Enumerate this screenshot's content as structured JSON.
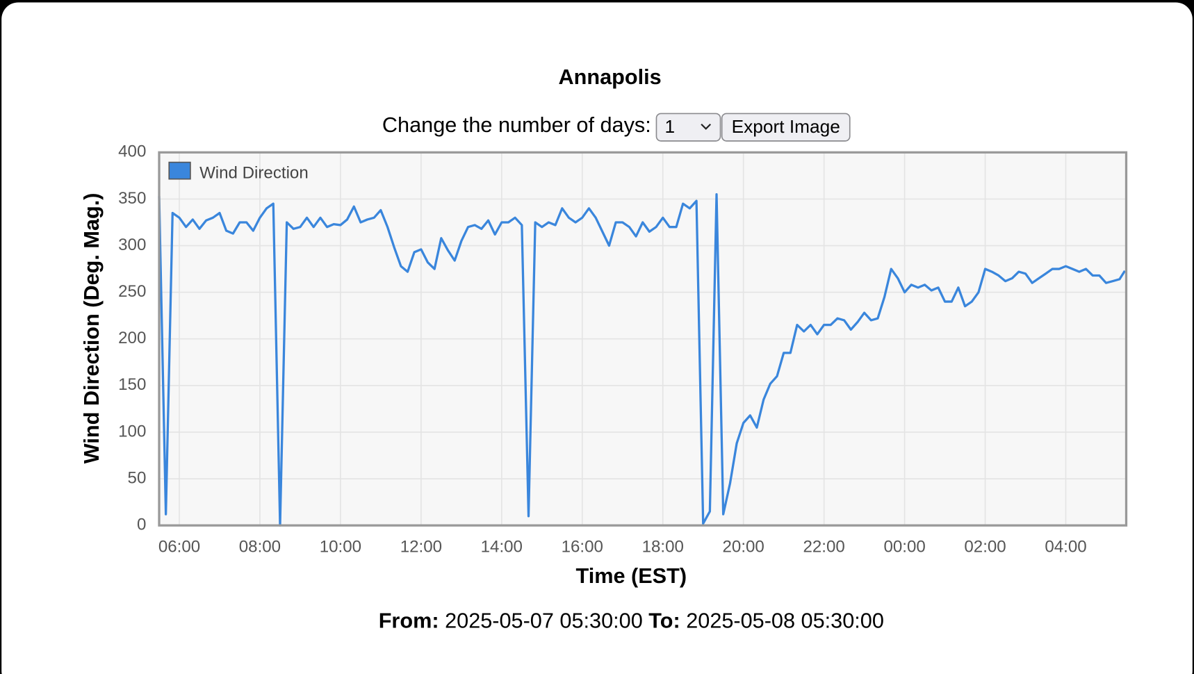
{
  "controls": {
    "label": "Change the number of days:",
    "days": "1",
    "export": "Export Image"
  },
  "footer": {
    "from_label": "From:",
    "from": "2025-05-07 05:30:00",
    "to_label": "To:",
    "to": "2025-05-08 05:30:00"
  },
  "chart_data": {
    "type": "line",
    "title": "Annapolis",
    "x_label": "Time (EST)",
    "y_label": "Wind Direction (Deg. Mag.)",
    "x": [
      "05:30",
      "05:40",
      "05:50",
      "06:00",
      "06:10",
      "06:20",
      "06:30",
      "06:40",
      "06:50",
      "07:00",
      "07:10",
      "07:20",
      "07:30",
      "07:40",
      "07:50",
      "08:00",
      "08:10",
      "08:20",
      "08:30",
      "08:40",
      "08:50",
      "09:00",
      "09:10",
      "09:20",
      "09:30",
      "09:40",
      "09:50",
      "10:00",
      "10:10",
      "10:20",
      "10:30",
      "10:40",
      "10:50",
      "11:00",
      "11:10",
      "11:20",
      "11:30",
      "11:40",
      "11:50",
      "12:00",
      "12:10",
      "12:20",
      "12:30",
      "12:40",
      "12:50",
      "13:00",
      "13:10",
      "13:20",
      "13:30",
      "13:40",
      "13:50",
      "14:00",
      "14:10",
      "14:20",
      "14:30",
      "14:40",
      "14:50",
      "15:00",
      "15:10",
      "15:20",
      "15:30",
      "15:40",
      "15:50",
      "16:00",
      "16:10",
      "16:20",
      "16:30",
      "16:40",
      "16:50",
      "17:00",
      "17:10",
      "17:20",
      "17:30",
      "17:40",
      "17:50",
      "18:00",
      "18:10",
      "18:20",
      "18:30",
      "18:40",
      "18:50",
      "19:00",
      "19:10",
      "19:20",
      "19:30",
      "19:40",
      "19:50",
      "20:00",
      "20:10",
      "20:20",
      "20:30",
      "20:40",
      "20:50",
      "21:00",
      "21:10",
      "21:20",
      "21:30",
      "21:40",
      "21:50",
      "22:00",
      "22:10",
      "22:20",
      "22:30",
      "22:40",
      "22:50",
      "23:00",
      "23:10",
      "23:20",
      "23:30",
      "23:40",
      "23:50",
      "00:00",
      "00:10",
      "00:20",
      "00:30",
      "00:40",
      "00:50",
      "01:00",
      "01:10",
      "01:20",
      "01:30",
      "01:40",
      "01:50",
      "02:00",
      "02:10",
      "02:20",
      "02:30",
      "02:40",
      "02:50",
      "03:00",
      "03:10",
      "03:20",
      "03:30",
      "03:40",
      "03:50",
      "04:00",
      "04:10",
      "04:20",
      "04:30",
      "04:40",
      "04:50",
      "05:00",
      "05:10",
      "05:20",
      "05:28"
    ],
    "series": [
      {
        "name": "Wind Direction",
        "color": "#3a86dc",
        "values": [
          353,
          12,
          335,
          330,
          320,
          328,
          318,
          327,
          330,
          335,
          316,
          313,
          325,
          325,
          316,
          330,
          340,
          345,
          0,
          325,
          318,
          320,
          330,
          320,
          330,
          320,
          323,
          322,
          328,
          342,
          325,
          328,
          330,
          338,
          320,
          298,
          278,
          272,
          293,
          296,
          282,
          275,
          308,
          295,
          284,
          305,
          320,
          322,
          318,
          327,
          312,
          325,
          325,
          330,
          322,
          10,
          325,
          320,
          325,
          322,
          340,
          330,
          325,
          330,
          340,
          330,
          315,
          300,
          325,
          325,
          320,
          310,
          325,
          315,
          320,
          330,
          320,
          320,
          345,
          340,
          348,
          2,
          15,
          355,
          12,
          45,
          88,
          110,
          118,
          105,
          135,
          152,
          160,
          185,
          185,
          215,
          208,
          215,
          205,
          215,
          215,
          222,
          220,
          210,
          218,
          228,
          220,
          222,
          245,
          275,
          265,
          250,
          258,
          255,
          258,
          252,
          255,
          240,
          240,
          255,
          235,
          240,
          250,
          275,
          272,
          268,
          262,
          265,
          272,
          270,
          260,
          265,
          270,
          275,
          275,
          278,
          275,
          272,
          275,
          268,
          268,
          260,
          262,
          264,
          273
        ]
      }
    ],
    "xlim": [
      "05:30",
      "05:30"
    ],
    "xticks": [
      "06:00",
      "08:00",
      "10:00",
      "12:00",
      "14:00",
      "16:00",
      "18:00",
      "20:00",
      "22:00",
      "00:00",
      "02:00",
      "04:00"
    ],
    "ylim": [
      0,
      400
    ],
    "yticks": [
      0,
      50,
      100,
      150,
      200,
      250,
      300,
      350,
      400
    ],
    "grid": true,
    "legend": "upper left"
  }
}
